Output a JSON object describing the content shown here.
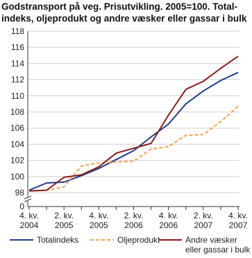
{
  "chart_data": {
    "type": "line",
    "title": [
      "Godstransport på veg. Prisutvikling. 2005=100. Total-",
      "indeks, oljeprodukt og andre væsker eller gassar i bulk"
    ],
    "categories": [
      [
        "4. kv.",
        "2004"
      ],
      null,
      [
        "2. kv.",
        "2005"
      ],
      null,
      [
        "4. kv.",
        "2005"
      ],
      null,
      [
        "2. kv.",
        "2006"
      ],
      null,
      [
        "4. kv.",
        "2006"
      ],
      null,
      [
        "2. kv.",
        "2007"
      ],
      null,
      [
        "4. kv.",
        "2007"
      ]
    ],
    "series": [
      {
        "name": "Totalindeks",
        "color": "#1f3f8f",
        "dash": false,
        "values": [
          98.3,
          99.2,
          99.3,
          100.1,
          101.0,
          102.1,
          103.2,
          104.9,
          106.5,
          109.0,
          110.6,
          111.9,
          112.9
        ]
      },
      {
        "name": "Oljeprodukt",
        "color": "#f7a14a",
        "dash": true,
        "values": [
          98.2,
          98.3,
          98.7,
          101.3,
          101.7,
          101.8,
          101.9,
          103.4,
          103.7,
          105.1,
          105.2,
          106.8,
          108.7
        ]
      },
      {
        "name": "Andre væsker eller gassar i bulk",
        "color": "#8b1a1a",
        "dash": false,
        "values": [
          98.2,
          98.3,
          99.9,
          100.2,
          101.2,
          102.9,
          103.5,
          104.1,
          107.6,
          110.8,
          111.8,
          113.4,
          114.9
        ]
      }
    ],
    "ylim": [
      98,
      118
    ],
    "yticks": [
      98,
      100,
      102,
      104,
      106,
      108,
      110,
      112,
      114,
      116,
      118
    ],
    "y_break_label": "0",
    "grid": true
  }
}
